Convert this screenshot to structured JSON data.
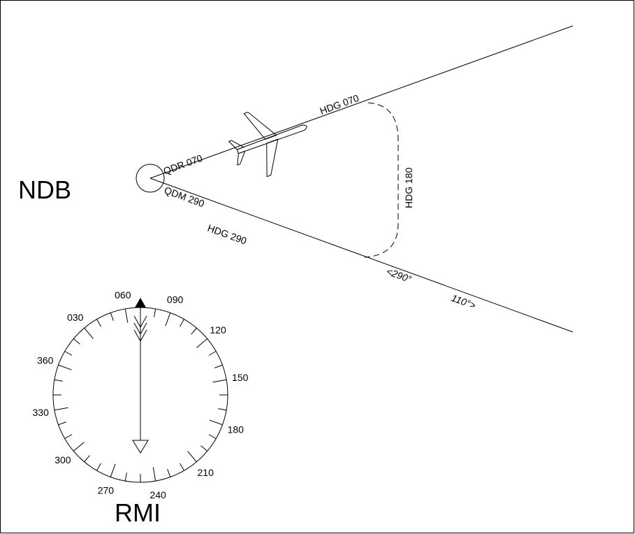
{
  "labels": {
    "station": "NDB",
    "instrument": "RMI"
  },
  "tracks": {
    "qdr": "QDR 070",
    "qdm": "QDM 290",
    "outbound": "HDG 070",
    "turn": "HDG 180",
    "inbound": "HDG 290",
    "left": "<290°",
    "right": "110°>"
  },
  "rmi_scale": [
    "060",
    "090",
    "120",
    "150",
    "180",
    "210",
    "240",
    "270",
    "300",
    "330",
    "360",
    "030"
  ]
}
